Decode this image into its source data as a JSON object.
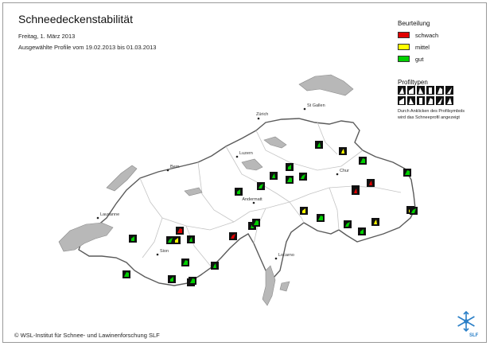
{
  "header": {
    "title": "Schneedeckenstabilität",
    "date": "Freitag, 1. März 2013",
    "period": "Ausgewählte Profile vom 19.02.2013 bis 01.03.2013"
  },
  "legend": {
    "title": "Beurteilung",
    "items": [
      {
        "label": "schwach",
        "color": "#e00000"
      },
      {
        "label": "mittel",
        "color": "#ffff00"
      },
      {
        "label": "gut",
        "color": "#00d000"
      }
    ]
  },
  "profiltypen": {
    "title": "Profiltypen",
    "note_line1": "Durch Anklicken des Profilsymbols",
    "note_line2": "wird das Schneeprofil angezeigt"
  },
  "footer": {
    "copyright": "© WSL-Institut für Schnee- und Lawinenforschung SLF",
    "logo_text": "SLF"
  },
  "cities": [
    {
      "name": "Zürich"
    },
    {
      "name": "St Gallen"
    },
    {
      "name": "Luzern"
    },
    {
      "name": "Bern"
    },
    {
      "name": "Chur"
    },
    {
      "name": "Andermatt"
    },
    {
      "name": "Lausanne"
    },
    {
      "name": "Sion"
    },
    {
      "name": "Locarno"
    }
  ],
  "profiles": [
    {
      "stability": "gut"
    },
    {
      "stability": "gut"
    },
    {
      "stability": "gut"
    },
    {
      "stability": "gut"
    },
    {
      "stability": "gut"
    },
    {
      "stability": "gut"
    },
    {
      "stability": "gut"
    },
    {
      "stability": "gut"
    },
    {
      "stability": "mittel"
    },
    {
      "stability": "gut"
    },
    {
      "stability": "mittel"
    },
    {
      "stability": "schwach"
    },
    {
      "stability": "schwach"
    },
    {
      "stability": "gut"
    },
    {
      "stability": "mittel"
    },
    {
      "stability": "gut"
    },
    {
      "stability": "mittel"
    },
    {
      "stability": "schwach"
    },
    {
      "stability": "mittel"
    },
    {
      "stability": "gut"
    },
    {
      "stability": "gut"
    },
    {
      "stability": "gut"
    },
    {
      "stability": "gut"
    },
    {
      "stability": "schwach"
    },
    {
      "stability": "gut"
    },
    {
      "stability": "gut"
    },
    {
      "stability": "gut"
    },
    {
      "stability": "schwach"
    },
    {
      "stability": "gut"
    },
    {
      "stability": "gut"
    },
    {
      "stability": "gut"
    },
    {
      "stability": "gut"
    },
    {
      "stability": "schwach"
    },
    {
      "stability": "gut"
    }
  ]
}
